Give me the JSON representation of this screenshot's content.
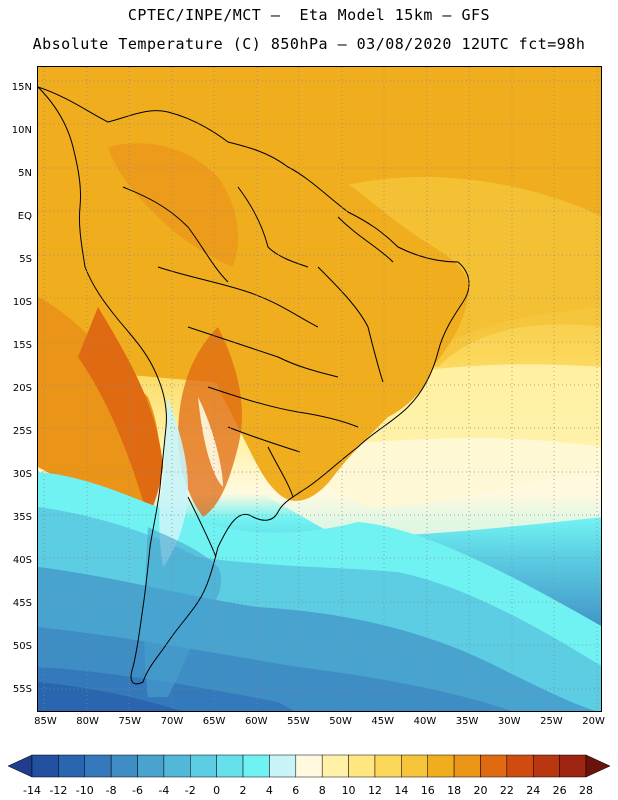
{
  "header": {
    "line1": "CPTEC/INPE/MCT –  Eta Model 15km – GFS",
    "line2": "Absolute Temperature (C) 850hPa – 03/08/2020 12UTC fct=98h"
  },
  "axes": {
    "lat_labels": [
      "15N",
      "10N",
      "5N",
      "EQ",
      "5S",
      "10S",
      "15S",
      "20S",
      "25S",
      "30S",
      "35S",
      "40S",
      "45S",
      "50S",
      "55S"
    ],
    "lon_labels": [
      "85W",
      "80W",
      "75W",
      "70W",
      "65W",
      "60W",
      "55W",
      "50W",
      "45W",
      "40W",
      "35W",
      "30W",
      "25W",
      "20W"
    ],
    "lat_range": [
      17.5,
      -57.5
    ],
    "lon_range": [
      -86,
      -19
    ]
  },
  "colorbar": {
    "levels": [
      "-14",
      "-12",
      "-10",
      "-8",
      "-6",
      "-4",
      "-2",
      "0",
      "2",
      "4",
      "6",
      "8",
      "10",
      "12",
      "14",
      "16",
      "18",
      "20",
      "22",
      "24",
      "26",
      "28"
    ],
    "colors": [
      "#1f3d8c",
      "#2350a0",
      "#2a66b0",
      "#3479bb",
      "#3e8dc4",
      "#48a3cf",
      "#52b8d9",
      "#5ccde2",
      "#66e0ea",
      "#70f2f2",
      "#c8f4f8",
      "#fff9e0",
      "#fff2a8",
      "#ffe680",
      "#fbd75a",
      "#f5c43a",
      "#f0ad1e",
      "#ea9418",
      "#e06a12",
      "#cf4b10",
      "#b83610",
      "#9c2410",
      "#7e1a0e",
      "#6a120c"
    ],
    "under_color": "#1f3d8c",
    "over_color": "#6a120c"
  }
}
